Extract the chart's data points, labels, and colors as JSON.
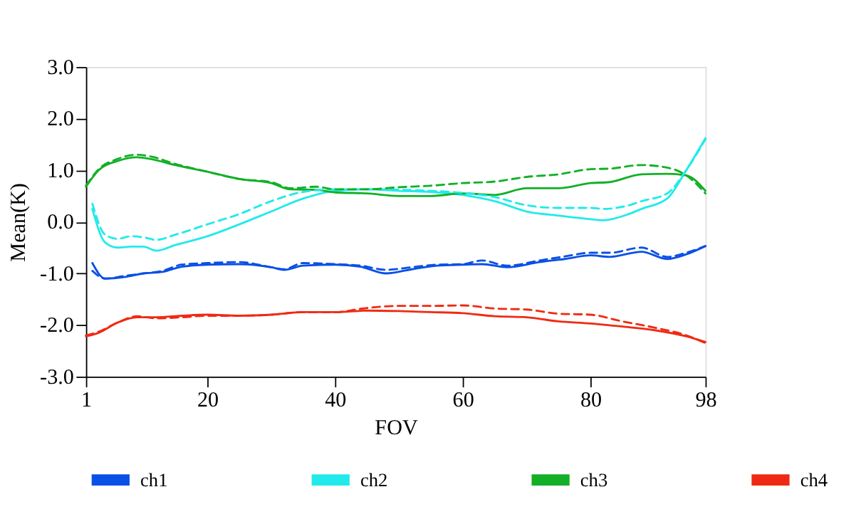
{
  "chart_data": {
    "type": "line",
    "xlabel": "FOV",
    "ylabel": "Mean(K)",
    "xlim": [
      1,
      98
    ],
    "xticks": [
      1,
      20,
      40,
      60,
      80,
      98
    ],
    "ylim": [
      -3,
      3
    ],
    "yticks": [
      {
        "value": -3,
        "label": "-3.0"
      },
      {
        "value": -2,
        "label": "-2.0"
      },
      {
        "value": -1,
        "label": "-1.0"
      },
      {
        "value": 0,
        "label": "0.0"
      },
      {
        "value": 1,
        "label": "1.0"
      },
      {
        "value": 2,
        "label": "2.0"
      },
      {
        "value": 3,
        "label": "3.0"
      }
    ],
    "grid": false,
    "legend": "bottom",
    "marker": "none",
    "series": [
      {
        "name": "ch1",
        "color": "#0a50e6",
        "line_style": "solid",
        "x": [
          2,
          4,
          7,
          10,
          13,
          16,
          20,
          25,
          30,
          32,
          35,
          40,
          44,
          48,
          52,
          56,
          60,
          63,
          67,
          72,
          76,
          80,
          83,
          88,
          92,
          95,
          98
        ],
        "values": [
          -0.8,
          -1.1,
          -1.07,
          -1.0,
          -0.97,
          -0.87,
          -0.83,
          -0.82,
          -0.88,
          -0.93,
          -0.85,
          -0.83,
          -0.87,
          -1.0,
          -0.92,
          -0.85,
          -0.83,
          -0.82,
          -0.88,
          -0.78,
          -0.72,
          -0.65,
          -0.68,
          -0.58,
          -0.72,
          -0.63,
          -0.47
        ]
      },
      {
        "name": "ch2",
        "color": "#22eaea",
        "line_style": "solid",
        "x": [
          2,
          4,
          6,
          8,
          10,
          12,
          15,
          20,
          25,
          30,
          35,
          40,
          45,
          50,
          55,
          60,
          65,
          70,
          75,
          80,
          82,
          86,
          88,
          92,
          95,
          98
        ],
        "values": [
          0.25,
          -0.4,
          -0.5,
          -0.48,
          -0.48,
          -0.56,
          -0.45,
          -0.28,
          -0.05,
          0.2,
          0.45,
          0.6,
          0.63,
          0.6,
          0.58,
          0.52,
          0.4,
          0.2,
          0.12,
          0.05,
          0.03,
          0.15,
          0.25,
          0.45,
          1.0,
          1.62
        ]
      },
      {
        "name": "ch3",
        "color": "#12b026",
        "line_style": "solid",
        "x": [
          1,
          3,
          6,
          9,
          11,
          15,
          20,
          25,
          30,
          33,
          37,
          40,
          45,
          50,
          55,
          60,
          65,
          70,
          75,
          80,
          83,
          88,
          92,
          95,
          98
        ],
        "values": [
          0.68,
          1.0,
          1.18,
          1.25,
          1.22,
          1.1,
          0.97,
          0.83,
          0.75,
          0.63,
          0.62,
          0.57,
          0.55,
          0.5,
          0.5,
          0.55,
          0.52,
          0.65,
          0.65,
          0.75,
          0.77,
          0.92,
          0.93,
          0.9,
          0.6
        ]
      },
      {
        "name": "ch4",
        "color": "#f02a12",
        "line_style": "solid",
        "x": [
          1,
          3,
          6,
          9,
          12,
          16,
          20,
          25,
          30,
          35,
          40,
          45,
          50,
          55,
          60,
          65,
          70,
          75,
          80,
          85,
          90,
          95,
          98
        ],
        "values": [
          -2.22,
          -2.15,
          -1.95,
          -1.85,
          -1.85,
          -1.82,
          -1.8,
          -1.82,
          -1.8,
          -1.75,
          -1.75,
          -1.72,
          -1.73,
          -1.75,
          -1.77,
          -1.83,
          -1.85,
          -1.93,
          -1.97,
          -2.03,
          -2.1,
          -2.22,
          -2.33
        ]
      },
      {
        "color": "#0a50e6",
        "line_style": "dashed",
        "x": [
          2,
          4,
          7,
          10,
          13,
          16,
          20,
          25,
          30,
          32,
          35,
          40,
          44,
          48,
          52,
          56,
          60,
          63,
          67,
          72,
          76,
          80,
          83,
          88,
          92,
          95,
          98
        ],
        "values": [
          -0.95,
          -1.1,
          -1.05,
          -1.0,
          -0.95,
          -0.83,
          -0.8,
          -0.78,
          -0.88,
          -0.92,
          -0.8,
          -0.82,
          -0.85,
          -0.93,
          -0.88,
          -0.83,
          -0.82,
          -0.75,
          -0.85,
          -0.75,
          -0.67,
          -0.6,
          -0.6,
          -0.5,
          -0.68,
          -0.6,
          -0.47
        ]
      },
      {
        "color": "#22eaea",
        "line_style": "dashed",
        "x": [
          2,
          4,
          6,
          8,
          10,
          12,
          15,
          20,
          25,
          30,
          35,
          40,
          45,
          50,
          55,
          60,
          65,
          70,
          75,
          80,
          82,
          86,
          88,
          92,
          95,
          98
        ],
        "values": [
          0.35,
          -0.25,
          -0.33,
          -0.28,
          -0.3,
          -0.35,
          -0.25,
          -0.05,
          0.15,
          0.4,
          0.58,
          0.63,
          0.63,
          0.62,
          0.6,
          0.56,
          0.48,
          0.32,
          0.27,
          0.27,
          0.25,
          0.32,
          0.4,
          0.55,
          1.0,
          1.6
        ]
      },
      {
        "color": "#12b026",
        "line_style": "dashed",
        "x": [
          1,
          3,
          6,
          9,
          11,
          15,
          20,
          25,
          30,
          33,
          37,
          40,
          45,
          50,
          55,
          60,
          65,
          70,
          75,
          80,
          83,
          88,
          92,
          95,
          98
        ],
        "values": [
          0.7,
          1.02,
          1.22,
          1.3,
          1.27,
          1.12,
          0.97,
          0.83,
          0.77,
          0.65,
          0.68,
          0.63,
          0.63,
          0.67,
          0.7,
          0.75,
          0.78,
          0.87,
          0.92,
          1.02,
          1.03,
          1.1,
          1.05,
          0.9,
          0.55
        ]
      },
      {
        "color": "#f02a12",
        "line_style": "dashed",
        "x": [
          1,
          3,
          6,
          9,
          12,
          16,
          20,
          25,
          30,
          35,
          40,
          45,
          50,
          55,
          60,
          65,
          70,
          75,
          80,
          85,
          90,
          95,
          98
        ],
        "values": [
          -2.2,
          -2.13,
          -1.95,
          -1.83,
          -1.87,
          -1.85,
          -1.82,
          -1.82,
          -1.8,
          -1.75,
          -1.75,
          -1.67,
          -1.63,
          -1.63,
          -1.62,
          -1.68,
          -1.7,
          -1.78,
          -1.8,
          -1.93,
          -2.05,
          -2.2,
          -2.35
        ]
      }
    ]
  }
}
